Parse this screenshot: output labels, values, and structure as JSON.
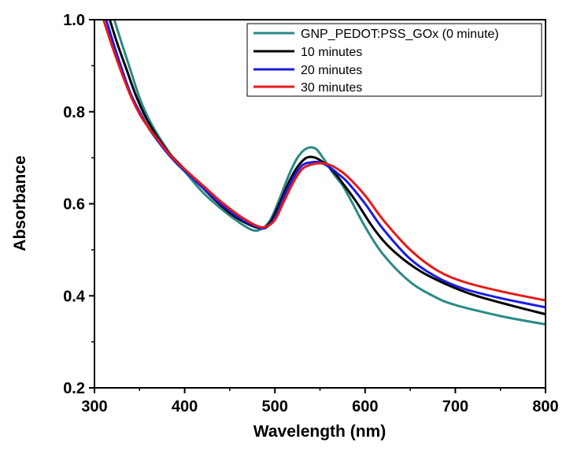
{
  "chart_data": {
    "type": "line",
    "title": "",
    "xlabel": "Wavelength (nm)",
    "ylabel": "Absorbance",
    "xlim": [
      300,
      800
    ],
    "ylim": [
      0.2,
      1.0
    ],
    "xticks": [
      300,
      400,
      500,
      600,
      700,
      800
    ],
    "yticks": [
      0.2,
      0.4,
      0.6,
      0.8,
      1.0
    ],
    "xtick_labels": [
      "300",
      "400",
      "500",
      "600",
      "700",
      "800"
    ],
    "ytick_labels": [
      "0.2",
      "0.4",
      "0.6",
      "0.8",
      "1.0"
    ],
    "grid": false,
    "legend_position": "top-right",
    "series": [
      {
        "name": "GNP_PEDOT:PSS_GOx (0 minute)",
        "color": "#2a8a85",
        "x": [
          322,
          330,
          340,
          350,
          360,
          370,
          380,
          390,
          400,
          420,
          440,
          460,
          475,
          485,
          495,
          505,
          515,
          525,
          535,
          545,
          555,
          565,
          575,
          585,
          600,
          620,
          650,
          680,
          700,
          730,
          760,
          800
        ],
        "y": [
          1.0,
          0.95,
          0.89,
          0.83,
          0.785,
          0.75,
          0.72,
          0.69,
          0.67,
          0.625,
          0.59,
          0.56,
          0.543,
          0.545,
          0.565,
          0.61,
          0.66,
          0.7,
          0.72,
          0.72,
          0.695,
          0.665,
          0.64,
          0.605,
          0.55,
          0.49,
          0.43,
          0.395,
          0.38,
          0.365,
          0.352,
          0.338
        ]
      },
      {
        "name": "10 minutes",
        "color": "#000000",
        "x": [
          317,
          325,
          335,
          345,
          355,
          365,
          375,
          385,
          395,
          410,
          430,
          450,
          470,
          485,
          495,
          505,
          515,
          525,
          535,
          545,
          555,
          565,
          575,
          590,
          610,
          630,
          660,
          690,
          720,
          760,
          800
        ],
        "y": [
          1.0,
          0.95,
          0.895,
          0.84,
          0.795,
          0.76,
          0.73,
          0.705,
          0.685,
          0.655,
          0.615,
          0.58,
          0.556,
          0.547,
          0.56,
          0.6,
          0.645,
          0.68,
          0.7,
          0.7,
          0.688,
          0.67,
          0.645,
          0.605,
          0.545,
          0.5,
          0.455,
          0.425,
          0.402,
          0.38,
          0.36
        ]
      },
      {
        "name": "20 minutes",
        "color": "#1a1ae6",
        "x": [
          313,
          320,
          330,
          340,
          350,
          360,
          370,
          380,
          390,
          400,
          420,
          440,
          460,
          480,
          490,
          500,
          510,
          520,
          530,
          540,
          550,
          560,
          570,
          580,
          600,
          620,
          650,
          680,
          710,
          750,
          800
        ],
        "y": [
          1.0,
          0.955,
          0.895,
          0.84,
          0.8,
          0.765,
          0.737,
          0.712,
          0.69,
          0.672,
          0.635,
          0.6,
          0.57,
          0.55,
          0.548,
          0.57,
          0.615,
          0.655,
          0.683,
          0.69,
          0.69,
          0.68,
          0.665,
          0.648,
          0.6,
          0.545,
          0.48,
          0.44,
          0.415,
          0.395,
          0.375
        ]
      },
      {
        "name": "30 minutes",
        "color": "#e61a1a",
        "x": [
          310,
          320,
          330,
          340,
          350,
          360,
          370,
          380,
          390,
          400,
          420,
          440,
          460,
          480,
          490,
          500,
          510,
          520,
          530,
          540,
          550,
          560,
          570,
          580,
          600,
          620,
          650,
          680,
          710,
          750,
          800
        ],
        "y": [
          1.0,
          0.94,
          0.885,
          0.835,
          0.795,
          0.765,
          0.74,
          0.715,
          0.693,
          0.675,
          0.64,
          0.605,
          0.575,
          0.552,
          0.55,
          0.565,
          0.605,
          0.645,
          0.675,
          0.685,
          0.688,
          0.685,
          0.675,
          0.66,
          0.618,
          0.565,
          0.5,
          0.455,
          0.43,
          0.41,
          0.39
        ]
      }
    ]
  }
}
